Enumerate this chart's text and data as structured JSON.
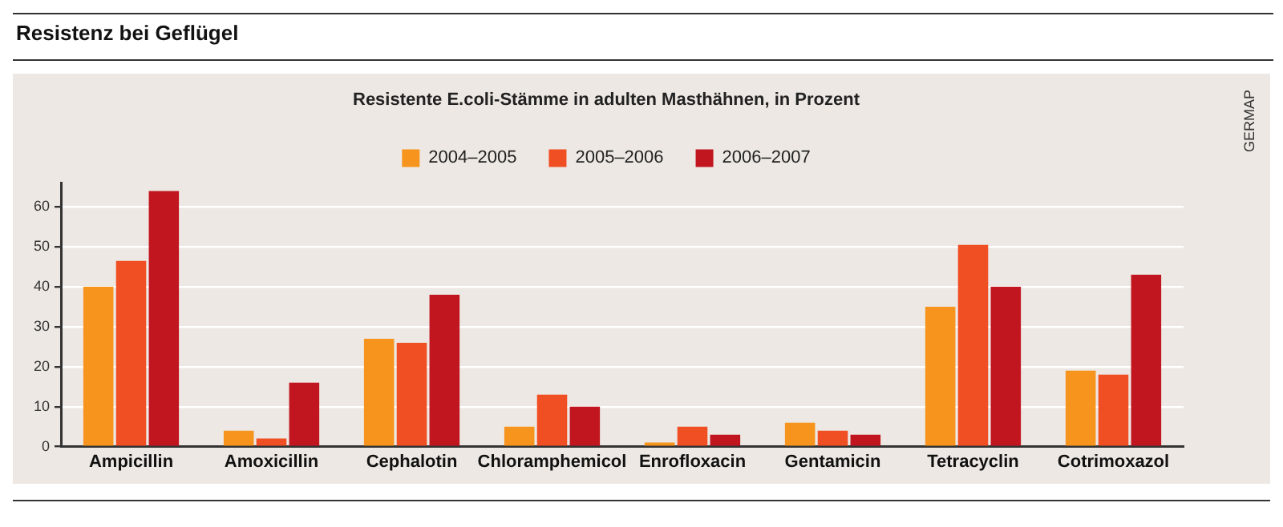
{
  "chart_data": {
    "type": "bar",
    "title": "Resistenz bei Geflügel",
    "subtitle": "Resistente E.coli-Stämme in adulten Masthähnen, in Prozent",
    "categories": [
      "Ampicillin",
      "Amoxicillin",
      "Cephalotin",
      "Chloramphemicol",
      "Enrofloxacin",
      "Gentamicin",
      "Tetracyclin",
      "Cotrimoxazol"
    ],
    "series": [
      {
        "name": "2004–2005",
        "color": "#f7941d",
        "values": [
          40,
          4,
          27,
          5,
          1,
          6,
          35,
          19
        ]
      },
      {
        "name": "2005–2006",
        "color": "#f04e23",
        "values": [
          46.5,
          2,
          26,
          13,
          5,
          4,
          50.5,
          18
        ]
      },
      {
        "name": "2006–2007",
        "color": "#c1161f",
        "values": [
          64,
          16,
          38,
          10,
          3,
          3,
          40,
          43
        ]
      }
    ],
    "ylim": [
      0,
      66
    ],
    "yticks": [
      0,
      10,
      20,
      30,
      40,
      50,
      60
    ],
    "grid": "y",
    "legend": "top",
    "annotations": [
      "GERMAP"
    ]
  }
}
